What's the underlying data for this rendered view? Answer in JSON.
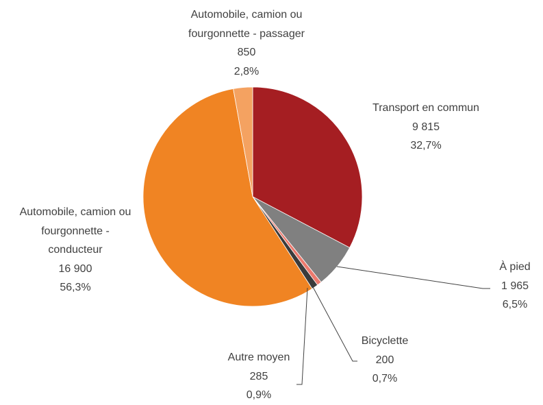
{
  "chart_data": {
    "type": "pie",
    "categories": [
      "Transport en commun",
      "À pied",
      "Bicyclette",
      "Autre moyen",
      "Automobile, camion ou\nfourgonnette -\nconducteur",
      "Automobile, camion ou\nfourgonnette - passager"
    ],
    "values": [
      9815,
      1965,
      200,
      285,
      16900,
      850
    ],
    "value_labels": [
      "9 815",
      "1 965",
      "200",
      "285",
      "16 900",
      "850"
    ],
    "percent_labels": [
      "32,7%",
      "6,5%",
      "0,7%",
      "0,9%",
      "56,3%",
      "2,8%"
    ],
    "colors": [
      "#a51e22",
      "#808080",
      "#ec7a6e",
      "#3b3b3b",
      "#f08423",
      "#f4a261"
    ]
  }
}
